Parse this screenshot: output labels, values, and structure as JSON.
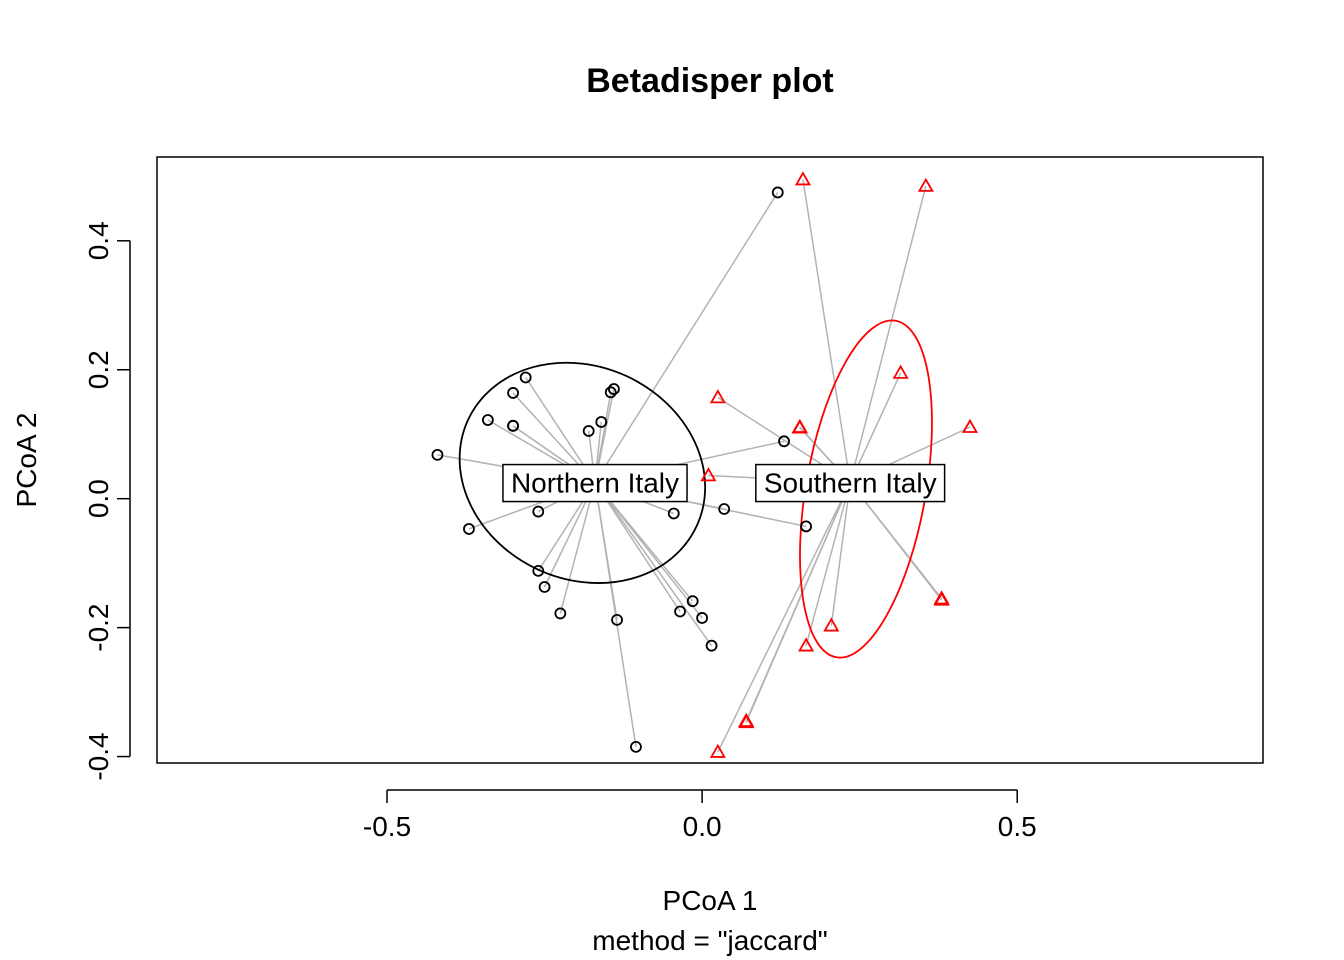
{
  "chart_data": {
    "type": "scatter",
    "title": "Betadisper plot",
    "xlabel": "PCoA 1",
    "ylabel": "PCoA 2",
    "sub": "method = \"jaccard\"",
    "xlim": [
      -0.865,
      0.89
    ],
    "ylim": [
      -0.41,
      0.53
    ],
    "x_ticks": [
      -0.5,
      0.0,
      0.5
    ],
    "x_tick_labels": [
      "-0.5",
      "0.0",
      "0.5"
    ],
    "y_ticks": [
      -0.4,
      -0.2,
      0.0,
      0.2,
      0.4
    ],
    "y_tick_labels": [
      "-0.4",
      "-0.2",
      "0.0",
      "0.2",
      "0.4"
    ],
    "segment_color": "#b3b3b3",
    "groups": [
      {
        "name": "Northern Italy",
        "color": "#000000",
        "marker": "circle",
        "centroid": [
          -0.17,
          0.025
        ],
        "ellipse": {
          "cx": -0.19,
          "cy": 0.04,
          "rx": 0.2,
          "ry": 0.165,
          "rotation_deg": 25
        },
        "points": [
          [
            0.12,
            0.475
          ],
          [
            -0.28,
            0.188
          ],
          [
            -0.3,
            0.164
          ],
          [
            -0.14,
            0.17
          ],
          [
            -0.145,
            0.165
          ],
          [
            -0.34,
            0.122
          ],
          [
            -0.3,
            0.113
          ],
          [
            -0.3,
            0.113
          ],
          [
            -0.16,
            0.119
          ],
          [
            -0.18,
            0.105
          ],
          [
            0.13,
            0.089
          ],
          [
            -0.42,
            0.068
          ],
          [
            0.035,
            -0.016
          ],
          [
            -0.045,
            -0.023
          ],
          [
            0.165,
            -0.043
          ],
          [
            -0.26,
            -0.02
          ],
          [
            -0.37,
            -0.047
          ],
          [
            -0.26,
            -0.112
          ],
          [
            -0.25,
            -0.137
          ],
          [
            -0.015,
            -0.159
          ],
          [
            -0.225,
            -0.178
          ],
          [
            -0.035,
            -0.175
          ],
          [
            0.0,
            -0.185
          ],
          [
            -0.135,
            -0.188
          ],
          [
            0.015,
            -0.228
          ],
          [
            -0.105,
            -0.385
          ]
        ]
      },
      {
        "name": "Southern Italy",
        "color": "#ff0000",
        "marker": "triangle",
        "centroid": [
          0.235,
          0.025
        ],
        "ellipse": {
          "cx": 0.26,
          "cy": 0.015,
          "rx": 0.095,
          "ry": 0.265,
          "rotation_deg": 10
        },
        "points": [
          [
            0.16,
            0.495
          ],
          [
            0.355,
            0.485
          ],
          [
            0.315,
            0.195
          ],
          [
            0.025,
            0.157
          ],
          [
            0.425,
            0.111
          ],
          [
            0.155,
            0.111
          ],
          [
            0.155,
            0.11
          ],
          [
            0.01,
            0.036
          ],
          [
            0.38,
            -0.155
          ],
          [
            0.38,
            -0.157
          ],
          [
            0.205,
            -0.197
          ],
          [
            0.165,
            -0.228
          ],
          [
            0.07,
            -0.345
          ],
          [
            0.07,
            -0.347
          ],
          [
            0.025,
            -0.393
          ]
        ]
      }
    ]
  }
}
